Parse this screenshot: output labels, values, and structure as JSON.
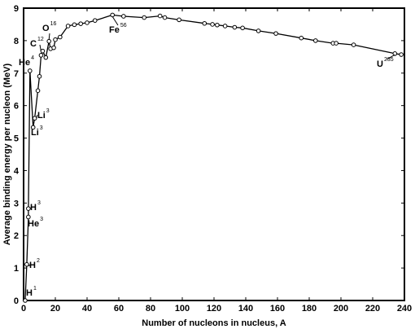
{
  "chart_data": {
    "type": "line",
    "title": "",
    "xlabel": "Number of nucleons in nucleus, A",
    "ylabel": "Average binding energy per nucleon (MeV)",
    "xlim": [
      0,
      240
    ],
    "ylim": [
      0,
      9
    ],
    "xticks": [
      0,
      20,
      40,
      60,
      80,
      100,
      120,
      140,
      160,
      180,
      200,
      220,
      240
    ],
    "yticks": [
      0,
      1,
      2,
      3,
      4,
      5,
      6,
      7,
      8,
      9
    ],
    "grid": false,
    "series": [
      {
        "points": [
          [
            1,
            0
          ],
          [
            2,
            1.11
          ],
          [
            3,
            2.57
          ],
          [
            3,
            2.83
          ],
          [
            4,
            7.07
          ],
          [
            6,
            5.33
          ],
          [
            7,
            5.61
          ],
          [
            9,
            6.46
          ],
          [
            10,
            6.9
          ],
          [
            11,
            7.55
          ],
          [
            12,
            7.68
          ],
          [
            14,
            7.48
          ],
          [
            16,
            7.98
          ],
          [
            17,
            7.75
          ],
          [
            19,
            7.78
          ],
          [
            20,
            8.03
          ],
          [
            23,
            8.11
          ],
          [
            28,
            8.45
          ],
          [
            32,
            8.49
          ],
          [
            36,
            8.52
          ],
          [
            40,
            8.55
          ],
          [
            45,
            8.62
          ],
          [
            56,
            8.79
          ],
          [
            63,
            8.75
          ],
          [
            76,
            8.71
          ],
          [
            86,
            8.76
          ],
          [
            89,
            8.71
          ],
          [
            98,
            8.64
          ],
          [
            114,
            8.53
          ],
          [
            119,
            8.5
          ],
          [
            122,
            8.48
          ],
          [
            127,
            8.45
          ],
          [
            133,
            8.41
          ],
          [
            138,
            8.39
          ],
          [
            148,
            8.3
          ],
          [
            159,
            8.22
          ],
          [
            175,
            8.08
          ],
          [
            184,
            8.0
          ],
          [
            195,
            7.92
          ],
          [
            197,
            7.92
          ],
          [
            208,
            7.87
          ],
          [
            234,
            7.6
          ],
          [
            238,
            7.57
          ]
        ]
      }
    ],
    "annotations": [
      {
        "symbol": "H",
        "mass": "1",
        "x": 1,
        "y": 0
      },
      {
        "symbol": "H",
        "mass": "2",
        "x": 2,
        "y": 1.11
      },
      {
        "symbol": "He",
        "mass": "3",
        "x": 3,
        "y": 2.57
      },
      {
        "symbol": "H",
        "mass": "3",
        "x": 3,
        "y": 2.83
      },
      {
        "symbol": "He",
        "mass": "4",
        "x": 4,
        "y": 7.07
      },
      {
        "symbol": "Li",
        "mass": "3",
        "x": 6,
        "y": 5.33
      },
      {
        "symbol": "Li",
        "mass": "3",
        "x": 7,
        "y": 5.61
      },
      {
        "symbol": "C",
        "mass": "12",
        "x": 12,
        "y": 7.68
      },
      {
        "symbol": "O",
        "mass": "16",
        "x": 16,
        "y": 7.98
      },
      {
        "symbol": "Fe",
        "mass": "56",
        "x": 56,
        "y": 8.79
      },
      {
        "symbol": "U",
        "mass": "235",
        "x": 235,
        "y": 7.59
      }
    ]
  }
}
